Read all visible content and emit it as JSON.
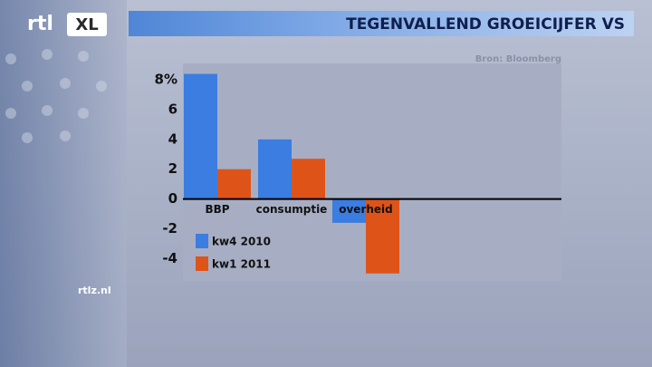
{
  "logo": {
    "main": "rtl",
    "badge": "XL"
  },
  "website": "rtlz.nl",
  "chart_data": {
    "type": "bar",
    "title": "TEGENVALLEND GROEICIJFER VS",
    "source": "Bron: Bloomberg",
    "categories": [
      "BBP",
      "consumptie",
      "overheid"
    ],
    "series": [
      {
        "name": "kw4 2010",
        "color": "#3b7de0",
        "values": [
          8.4,
          4.0,
          -1.6
        ]
      },
      {
        "name": "kw1 2011",
        "color": "#de5418",
        "values": [
          2.0,
          2.7,
          -5.0
        ]
      }
    ],
    "ylim": [
      -5.5,
      9.1
    ],
    "yticks": [
      {
        "value": 8,
        "label": "8%"
      },
      6,
      4,
      2,
      0,
      -2,
      -4
    ],
    "legend": "lower left"
  }
}
